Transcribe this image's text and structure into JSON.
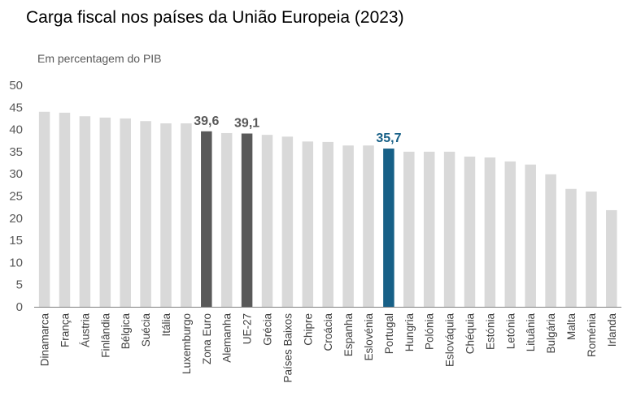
{
  "chart_data": {
    "type": "bar",
    "title": "Carga fiscal nos países da União Europeia (2023)",
    "subtitle": "Em percentagem do PIB",
    "ylim": [
      0,
      50
    ],
    "yticks": [
      0,
      5,
      10,
      15,
      20,
      25,
      30,
      35,
      40,
      45,
      50
    ],
    "grid": false,
    "categories": [
      "Dinamarca",
      "França",
      "Áustria",
      "Finlândia",
      "Bélgica",
      "Suécia",
      "Itália",
      "Luxemburgo",
      "Zona Euro",
      "Alemanha",
      "UE-27",
      "Grécia",
      "Países Baixos",
      "Chipre",
      "Croácia",
      "Espanha",
      "Eslovénia",
      "Portugal",
      "Hungria",
      "Polónia",
      "Eslováquia",
      "Chéquia",
      "Estónia",
      "Letónia",
      "Lituânia",
      "Bulgária",
      "Malta",
      "Roménia",
      "Irlanda"
    ],
    "values": [
      44.0,
      43.8,
      43.0,
      42.7,
      42.5,
      41.9,
      41.4,
      41.4,
      39.6,
      39.2,
      39.1,
      38.8,
      38.4,
      37.3,
      37.2,
      36.4,
      36.4,
      35.7,
      35.0,
      35.0,
      35.0,
      33.9,
      33.7,
      32.8,
      32.1,
      29.9,
      26.6,
      26.0,
      21.8
    ],
    "data_labels": {
      "Zona Euro": "39,6",
      "UE-27": "39,1",
      "Portugal": "35,7"
    },
    "colors": {
      "default": "#d9d9d9",
      "aggregate": "#595959",
      "highlight": "#176087",
      "axis": "#808080"
    }
  }
}
